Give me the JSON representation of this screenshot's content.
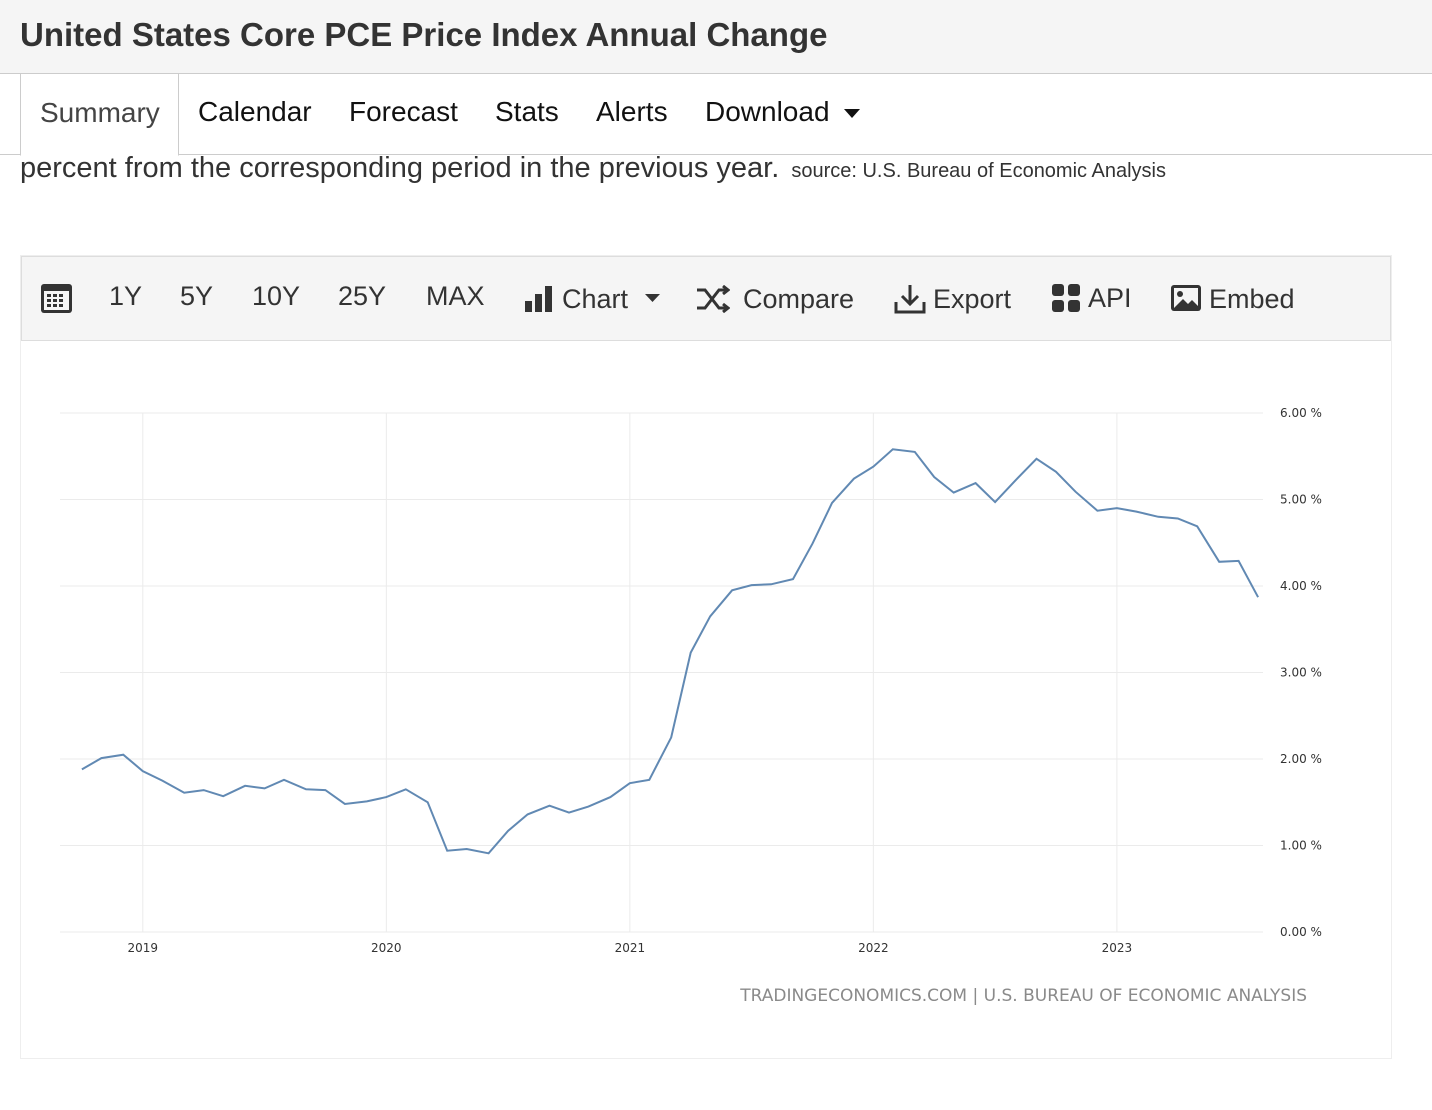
{
  "header": {
    "title": "United States Core PCE Price Index Annual Change"
  },
  "tabs": [
    "Summary",
    "Calendar",
    "Forecast",
    "Stats",
    "Alerts",
    "Download"
  ],
  "description": {
    "text": "percent from the corresponding period in the previous year.",
    "source": "source: U.S. Bureau of Economic Analysis"
  },
  "toolbar": {
    "ranges": [
      "1Y",
      "5Y",
      "10Y",
      "25Y",
      "MAX"
    ],
    "chart": "Chart",
    "compare": "Compare",
    "export": "Export",
    "api": "API",
    "embed": "Embed"
  },
  "chart_data": {
    "type": "line",
    "color": "#6189b3",
    "grid": true,
    "credit": "TRADINGECONOMICS.COM | U.S. BUREAU OF ECONOMIC ANALYSIS",
    "x": [
      2018.75,
      2018.83,
      2018.92,
      2019,
      2019.08,
      2019.17,
      2019.25,
      2019.33,
      2019.42,
      2019.5,
      2019.58,
      2019.67,
      2019.75,
      2019.83,
      2019.92,
      2020,
      2020.08,
      2020.17,
      2020.25,
      2020.33,
      2020.42,
      2020.5,
      2020.58,
      2020.67,
      2020.75,
      2020.83,
      2020.92,
      2021,
      2021.08,
      2021.17,
      2021.25,
      2021.33,
      2021.42,
      2021.5,
      2021.58,
      2021.67,
      2021.75,
      2021.83,
      2021.92,
      2022,
      2022.08,
      2022.17,
      2022.25,
      2022.33,
      2022.42,
      2022.5,
      2022.58,
      2022.67,
      2022.75,
      2022.83,
      2022.92,
      2023,
      2023.08,
      2023.17,
      2023.25,
      2023.33,
      2023.42,
      2023.5,
      2023.58
    ],
    "values": [
      1.88,
      2.01,
      2.05,
      1.86,
      1.75,
      1.61,
      1.64,
      1.57,
      1.69,
      1.66,
      1.76,
      1.65,
      1.64,
      1.48,
      1.51,
      1.56,
      1.65,
      1.5,
      0.94,
      0.96,
      0.91,
      1.17,
      1.36,
      1.46,
      1.38,
      1.45,
      1.56,
      1.72,
      1.76,
      2.25,
      3.23,
      3.65,
      3.95,
      4.01,
      4.02,
      4.08,
      4.49,
      4.96,
      5.24,
      5.38,
      5.58,
      5.55,
      5.26,
      5.08,
      5.19,
      4.97,
      5.21,
      5.47,
      5.32,
      5.09,
      4.87,
      4.9,
      4.86,
      4.8,
      4.78,
      4.69,
      4.28,
      4.29,
      3.87
    ],
    "xlim": [
      2018.66,
      2023.6
    ],
    "xticks": [
      2019,
      2020,
      2021,
      2022,
      2023
    ],
    "ylim": [
      0,
      6
    ],
    "yticks": [
      {
        "value": 0,
        "label": "0.00 %"
      },
      {
        "value": 1,
        "label": "1.00 %"
      },
      {
        "value": 2,
        "label": "2.00 %"
      },
      {
        "value": 3,
        "label": "3.00 %"
      },
      {
        "value": 4,
        "label": "4.00 %"
      },
      {
        "value": 5,
        "label": "5.00 %"
      },
      {
        "value": 6,
        "label": "6.00 %"
      }
    ]
  }
}
